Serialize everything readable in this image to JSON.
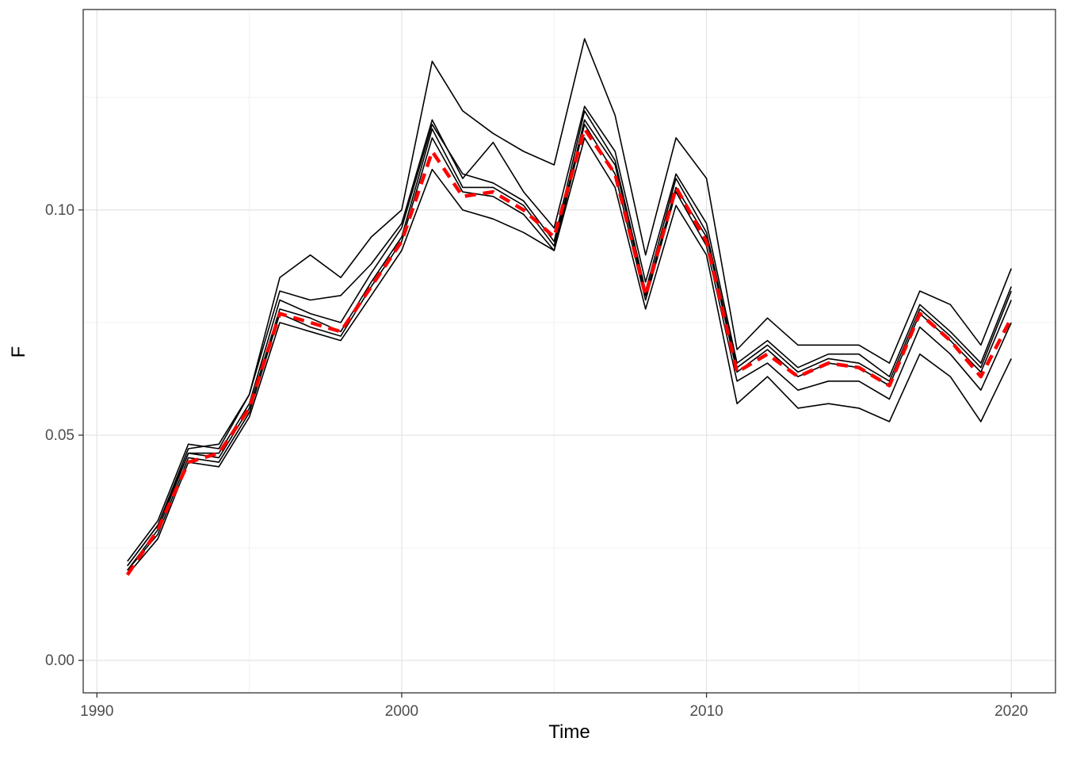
{
  "chart_data": {
    "type": "line",
    "title": "",
    "xlabel": "Time",
    "ylabel": "F",
    "xlim": [
      1989.55,
      2021.45
    ],
    "ylim": [
      -0.0072,
      0.1445
    ],
    "grid": "on",
    "legend": "none",
    "x_ticks": [
      1990,
      2000,
      2010,
      2020
    ],
    "x_tick_labels": [
      "1990",
      "2000",
      "2010",
      "2020"
    ],
    "x_minor_ticks": [
      1995,
      2005,
      2015
    ],
    "y_ticks": [
      0.0,
      0.05,
      0.1
    ],
    "y_tick_labels": [
      "0.00",
      "0.05",
      "0.10"
    ],
    "y_minor_ticks": [
      0.025,
      0.075,
      0.125
    ],
    "x": [
      1991,
      1992,
      1993,
      1994,
      1995,
      1996,
      1997,
      1998,
      1999,
      2000,
      2001,
      2002,
      2003,
      2004,
      2005,
      2006,
      2007,
      2008,
      2009,
      2010,
      2011,
      2012,
      2013,
      2014,
      2015,
      2016,
      2017,
      2018,
      2019,
      2020
    ],
    "series": [
      {
        "name": "run-1",
        "color": "#000000",
        "dash": "none",
        "width": 1.6,
        "values": [
          0.022,
          0.031,
          0.048,
          0.047,
          0.059,
          0.085,
          0.09,
          0.085,
          0.094,
          0.1,
          0.133,
          0.122,
          0.117,
          0.113,
          0.11,
          0.138,
          0.121,
          0.09,
          0.116,
          0.107,
          0.069,
          0.076,
          0.07,
          0.07,
          0.07,
          0.066,
          0.082,
          0.079,
          0.07,
          0.087
        ]
      },
      {
        "name": "run-2",
        "color": "#000000",
        "dash": "none",
        "width": 1.6,
        "values": [
          0.021,
          0.03,
          0.047,
          0.048,
          0.059,
          0.082,
          0.08,
          0.081,
          0.088,
          0.097,
          0.12,
          0.107,
          0.115,
          0.104,
          0.096,
          0.123,
          0.113,
          0.084,
          0.108,
          0.097,
          0.066,
          0.071,
          0.065,
          0.068,
          0.068,
          0.063,
          0.079,
          0.073,
          0.066,
          0.083
        ]
      },
      {
        "name": "run-3",
        "color": "#000000",
        "dash": "none",
        "width": 1.6,
        "values": [
          0.021,
          0.03,
          0.046,
          0.046,
          0.057,
          0.08,
          0.077,
          0.075,
          0.086,
          0.096,
          0.119,
          0.108,
          0.106,
          0.102,
          0.093,
          0.122,
          0.111,
          0.082,
          0.107,
          0.095,
          0.065,
          0.07,
          0.064,
          0.067,
          0.066,
          0.062,
          0.078,
          0.072,
          0.065,
          0.082
        ]
      },
      {
        "name": "run-4",
        "color": "#000000",
        "dash": "none",
        "width": 1.6,
        "values": [
          0.02,
          0.029,
          0.046,
          0.045,
          0.056,
          0.078,
          0.076,
          0.073,
          0.084,
          0.094,
          0.118,
          0.105,
          0.105,
          0.101,
          0.092,
          0.12,
          0.11,
          0.081,
          0.105,
          0.094,
          0.064,
          0.069,
          0.063,
          0.066,
          0.065,
          0.061,
          0.077,
          0.071,
          0.064,
          0.08
        ]
      },
      {
        "name": "run-5",
        "color": "#000000",
        "dash": "none",
        "width": 1.6,
        "values": [
          0.02,
          0.028,
          0.045,
          0.044,
          0.055,
          0.077,
          0.074,
          0.072,
          0.083,
          0.093,
          0.116,
          0.104,
          0.103,
          0.099,
          0.091,
          0.119,
          0.108,
          0.08,
          0.104,
          0.092,
          0.062,
          0.066,
          0.06,
          0.062,
          0.062,
          0.058,
          0.074,
          0.068,
          0.06,
          0.075
        ]
      },
      {
        "name": "run-6",
        "color": "#000000",
        "dash": "none",
        "width": 1.6,
        "values": [
          0.019,
          0.027,
          0.044,
          0.043,
          0.054,
          0.075,
          0.073,
          0.071,
          0.081,
          0.091,
          0.109,
          0.1,
          0.098,
          0.095,
          0.091,
          0.116,
          0.105,
          0.078,
          0.101,
          0.09,
          0.057,
          0.063,
          0.056,
          0.057,
          0.056,
          0.053,
          0.068,
          0.063,
          0.053,
          0.067
        ]
      },
      {
        "name": "reference",
        "color": "#ff0000",
        "dash": "14 9",
        "width": 4.5,
        "values": [
          0.019,
          0.029,
          0.044,
          0.046,
          0.056,
          0.077,
          0.075,
          0.073,
          0.083,
          0.093,
          0.113,
          0.103,
          0.104,
          0.1,
          0.094,
          0.118,
          0.108,
          0.081,
          0.105,
          0.093,
          0.064,
          0.068,
          0.063,
          0.066,
          0.065,
          0.061,
          0.077,
          0.071,
          0.063,
          0.076
        ]
      }
    ],
    "colors": {
      "background": "#ffffff",
      "panel_background": "#ffffff",
      "grid_major": "#e4e4e4",
      "grid_minor": "#f0f0f0",
      "panel_border": "#333333",
      "tick_mark": "#333333",
      "tick_label": "#4d4d4d",
      "axis_title": "#000000",
      "reference_line": "#ff0000",
      "run_line": "#000000"
    }
  }
}
